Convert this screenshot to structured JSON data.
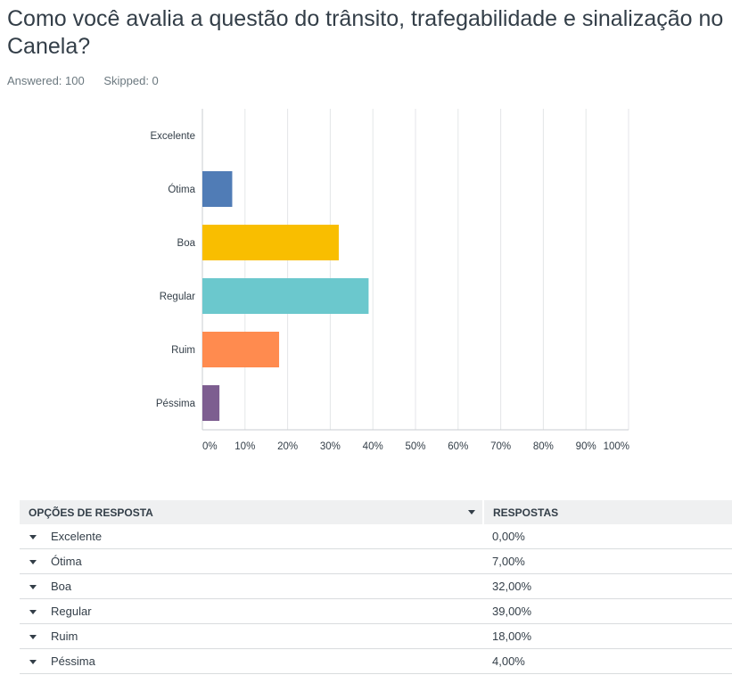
{
  "question": {
    "title": "Como você avalia a questão do trânsito, trafegabilidade e sinalização no Canela?",
    "answered": "Answered: 100",
    "skipped": "Skipped: 0"
  },
  "chart_data": {
    "type": "bar",
    "orientation": "horizontal",
    "categories": [
      "Excelente",
      "Ótima",
      "Boa",
      "Regular",
      "Ruim",
      "Péssima"
    ],
    "values": [
      0,
      7,
      32,
      39,
      18,
      4
    ],
    "colors": [
      "#e66c37",
      "#507cb6",
      "#f9be00",
      "#6bc8cd",
      "#ff8b4f",
      "#7d5e90"
    ],
    "xlim": [
      0,
      100
    ],
    "xticks": [
      "0%",
      "10%",
      "20%",
      "30%",
      "40%",
      "50%",
      "60%",
      "70%",
      "80%",
      "90%",
      "100%"
    ],
    "grid": true
  },
  "table": {
    "header_option": "OPÇÕES DE RESPOSTA",
    "header_responses": "RESPOSTAS",
    "rows": [
      {
        "option": "Excelente",
        "response": "0,00%"
      },
      {
        "option": "Ótima",
        "response": "7,00%"
      },
      {
        "option": "Boa",
        "response": "32,00%"
      },
      {
        "option": "Regular",
        "response": "39,00%"
      },
      {
        "option": "Ruim",
        "response": "18,00%"
      },
      {
        "option": "Péssima",
        "response": "4,00%"
      }
    ]
  }
}
